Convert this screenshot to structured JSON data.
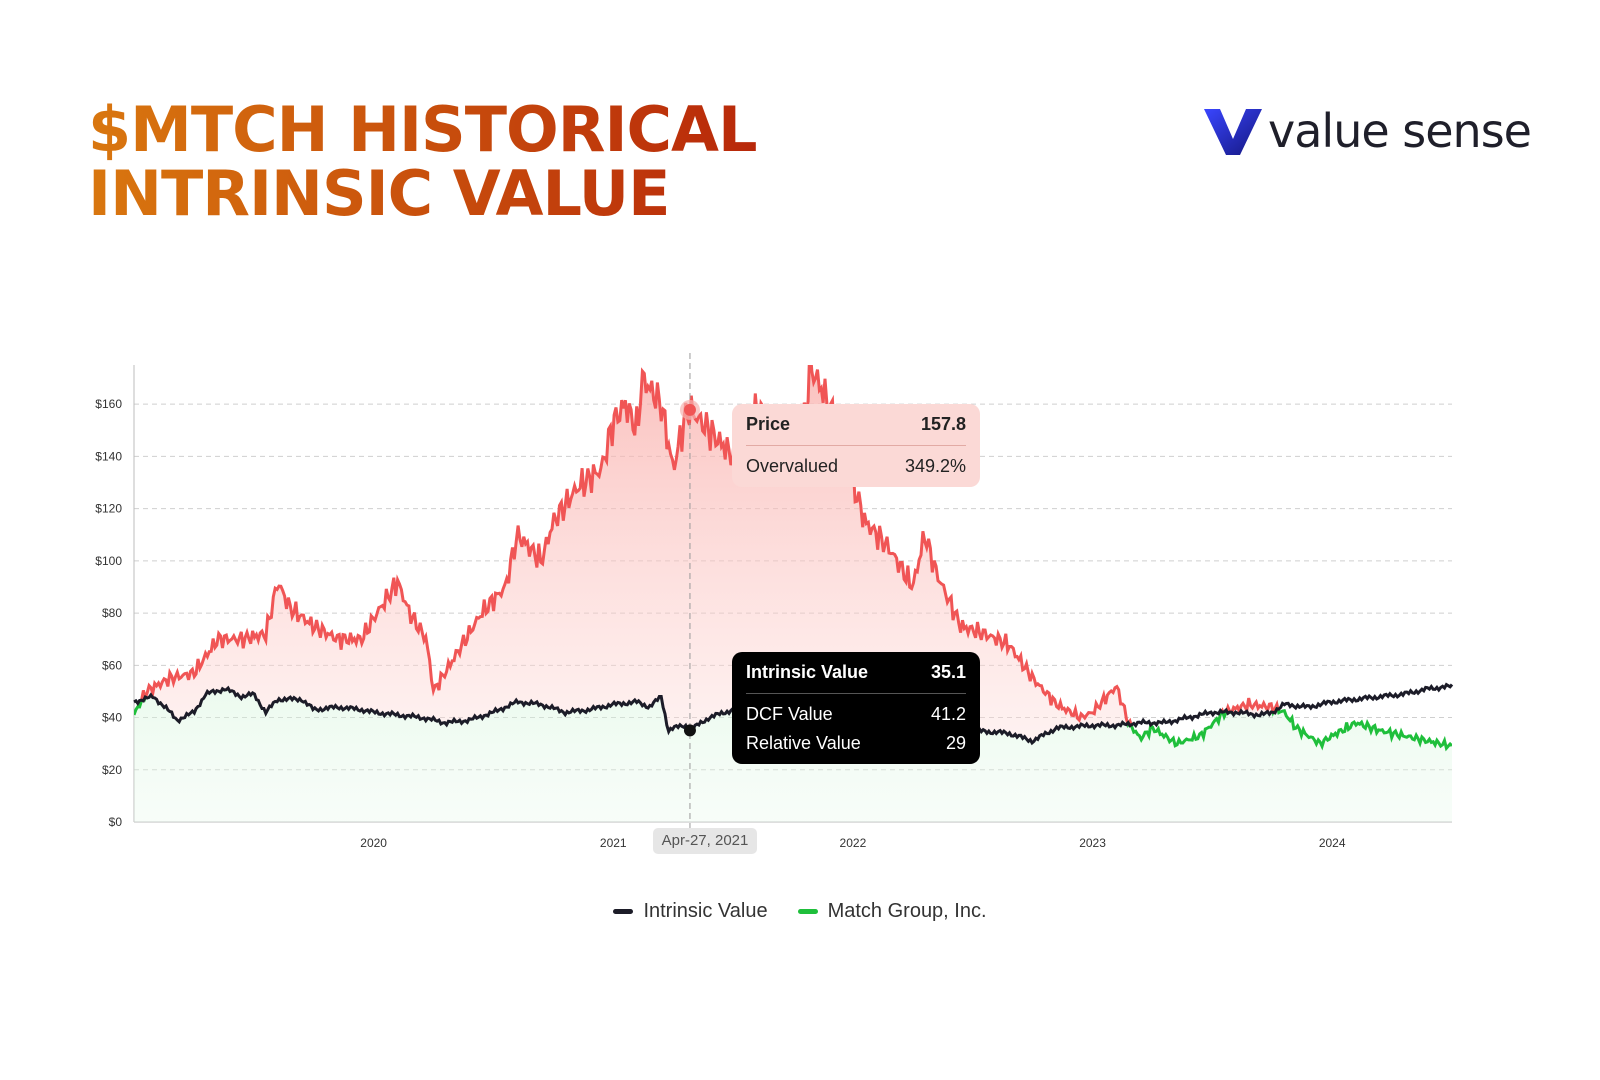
{
  "header": {
    "title_line1": "$MTCH HISTORICAL",
    "title_line2": "INTRINSIC VALUE"
  },
  "brand": {
    "name": "value sense",
    "logo_icon": "v-logo-icon",
    "color": "#2a2fd6"
  },
  "tooltip_price": {
    "label": "Price",
    "value": "157.8",
    "status_label": "Overvalued",
    "status_value": "349.2%"
  },
  "tooltip_iv": {
    "label": "Intrinsic Value",
    "value": "35.1",
    "dcf_label": "DCF Value",
    "dcf_value": "41.2",
    "rel_label": "Relative Value",
    "rel_value": "29"
  },
  "hover_date": "Apr-27, 2021",
  "legend": [
    {
      "label": "Intrinsic Value",
      "color": "#1c1c28"
    },
    {
      "label": "Match Group, Inc.",
      "color": "#1fbf3b"
    }
  ],
  "chart_data": {
    "type": "line",
    "ylim": [
      0,
      175
    ],
    "y_ticks": [
      0,
      20,
      40,
      60,
      80,
      100,
      120,
      140,
      160
    ],
    "y_tick_labels": [
      "$0",
      "$20",
      "$40",
      "$60",
      "$80",
      "$100",
      "$120",
      "$140",
      "$160"
    ],
    "x_range": [
      2019.0,
      2024.5
    ],
    "x_ticks": [
      2020,
      2021,
      2022,
      2023,
      2024
    ],
    "x_tick_labels": [
      "2020",
      "2021",
      "2022",
      "2023",
      "2024"
    ],
    "grid": true,
    "legend_position": "bottom-center",
    "hover_x": 2021.32,
    "colors": {
      "overvalued": "#f05555",
      "undervalued": "#1fbf3b",
      "intrinsic": "#1c1c28"
    },
    "series": [
      {
        "name": "Intrinsic Value",
        "x": [
          2019.0,
          2019.08,
          2019.13,
          2019.18,
          2019.25,
          2019.3,
          2019.38,
          2019.45,
          2019.5,
          2019.55,
          2019.6,
          2019.7,
          2019.75,
          2019.85,
          2019.95,
          2020.0,
          2020.1,
          2020.2,
          2020.3,
          2020.4,
          2020.5,
          2020.6,
          2020.7,
          2020.8,
          2020.9,
          2021.0,
          2021.1,
          2021.15,
          2021.2,
          2021.23,
          2021.25,
          2021.3,
          2021.32,
          2021.4,
          2021.5,
          2021.6,
          2021.7,
          2021.8,
          2021.9,
          2022.0,
          2022.1,
          2022.2,
          2022.3,
          2022.4,
          2022.5,
          2022.65,
          2022.75,
          2022.85,
          2023.0,
          2023.1,
          2023.2,
          2023.3,
          2023.4,
          2023.5,
          2023.6,
          2023.7,
          2023.75,
          2023.8,
          2023.9,
          2024.0,
          2024.1,
          2024.2,
          2024.3,
          2024.4,
          2024.5
        ],
        "values": [
          46,
          48,
          44,
          39,
          42,
          49,
          51,
          48,
          49,
          42,
          47,
          47,
          43,
          44,
          43,
          42,
          41,
          40,
          38,
          39,
          42,
          46,
          45,
          42,
          43,
          45,
          46,
          44,
          48,
          35,
          36,
          37,
          35.1,
          40,
          43,
          41,
          39,
          39,
          40,
          40,
          39,
          37,
          36,
          35,
          35,
          34,
          31,
          36,
          37,
          37,
          38,
          38,
          40,
          42,
          42,
          41,
          42,
          45,
          44,
          46,
          47,
          48,
          49,
          51,
          52
        ]
      },
      {
        "name": "Match Group, Inc.",
        "x": [
          2019.0,
          2019.05,
          2019.15,
          2019.25,
          2019.35,
          2019.45,
          2019.55,
          2019.6,
          2019.65,
          2019.75,
          2019.85,
          2019.95,
          2020.0,
          2020.1,
          2020.15,
          2020.22,
          2020.25,
          2020.35,
          2020.45,
          2020.55,
          2020.6,
          2020.7,
          2020.75,
          2020.85,
          2020.95,
          2021.0,
          2021.05,
          2021.1,
          2021.12,
          2021.2,
          2021.25,
          2021.3,
          2021.32,
          2021.4,
          2021.5,
          2021.6,
          2021.7,
          2021.8,
          2021.82,
          2021.9,
          2022.0,
          2022.05,
          2022.15,
          2022.25,
          2022.3,
          2022.35,
          2022.45,
          2022.55,
          2022.65,
          2022.75,
          2022.85,
          2022.95,
          2023.0,
          2023.1,
          2023.15,
          2023.2,
          2023.25,
          2023.35,
          2023.45,
          2023.55,
          2023.65,
          2023.75,
          2023.8,
          2023.85,
          2023.95,
          2024.0,
          2024.1,
          2024.2,
          2024.3,
          2024.4,
          2024.5
        ],
        "values": [
          41,
          50,
          55,
          57,
          70,
          70,
          72,
          92,
          82,
          75,
          70,
          70,
          78,
          92,
          80,
          70,
          50,
          65,
          80,
          90,
          110,
          100,
          115,
          128,
          135,
          153,
          160,
          150,
          170,
          160,
          135,
          155,
          157.8,
          150,
          140,
          158,
          148,
          155,
          175,
          160,
          130,
          115,
          105,
          90,
          110,
          95,
          75,
          72,
          68,
          55,
          45,
          40,
          42,
          52,
          38,
          32,
          36,
          30,
          33,
          42,
          45,
          44,
          42,
          36,
          30,
          33,
          38,
          35,
          33,
          31,
          29
        ]
      }
    ]
  }
}
